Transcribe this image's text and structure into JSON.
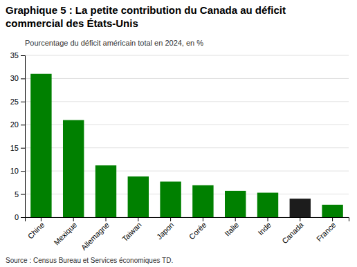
{
  "chart_data": {
    "type": "bar",
    "title": [
      "Graphique 5 : La petite contribution du Canada au déficit",
      "commercial des États-Unis"
    ],
    "subtitle": "Pourcentage du déficit américain total en 2024, en %",
    "source": "Source : Census Bureau et Services économiques TD.",
    "categories": [
      "Chine",
      "Mexique",
      "Allemagne",
      "Taiwan",
      "Japon",
      "Corée",
      "Italie",
      "Inde",
      "Canada",
      "France"
    ],
    "values": [
      31.0,
      21.0,
      11.2,
      8.8,
      7.7,
      6.9,
      5.7,
      5.3,
      4.0,
      2.7
    ],
    "colors": [
      "#008000",
      "#008000",
      "#008000",
      "#008000",
      "#008000",
      "#008000",
      "#008000",
      "#008000",
      "#1c1c1c",
      "#008000"
    ],
    "ylim": [
      0,
      35
    ],
    "yticks": [
      0,
      5,
      10,
      15,
      20,
      25,
      30,
      35
    ],
    "grid": true
  }
}
